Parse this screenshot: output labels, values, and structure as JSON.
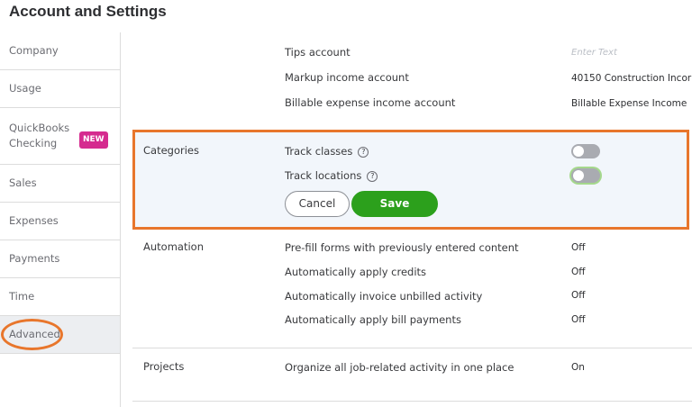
{
  "title": "Account and Settings",
  "sidebar": {
    "items": [
      {
        "label": "Company"
      },
      {
        "label": "Usage"
      },
      {
        "label": "QuickBooks Checking",
        "badge": "NEW"
      },
      {
        "label": "Sales"
      },
      {
        "label": "Expenses"
      },
      {
        "label": "Payments"
      },
      {
        "label": "Time"
      },
      {
        "label": "Advanced",
        "active": true
      }
    ]
  },
  "accounts": {
    "tips_label": "Tips account",
    "tips_placeholder": "Enter Text",
    "markup_label": "Markup income account",
    "markup_value": "40150 Construction Incor",
    "billable_label": "Billable expense income account",
    "billable_value": "Billable Expense Income"
  },
  "categories": {
    "label": "Categories",
    "track_classes": "Track classes",
    "track_locations": "Track locations",
    "help": "?",
    "track_classes_on": false,
    "track_locations_on": false,
    "cancel": "Cancel",
    "save": "Save"
  },
  "automation": {
    "label": "Automation",
    "rows": [
      {
        "label": "Pre-fill forms with previously entered content",
        "value": "Off"
      },
      {
        "label": "Automatically apply credits",
        "value": "Off"
      },
      {
        "label": "Automatically invoice unbilled activity",
        "value": "Off"
      },
      {
        "label": "Automatically apply bill payments",
        "value": "Off"
      }
    ]
  },
  "projects": {
    "label": "Projects",
    "row": "Organize all job-related activity in one place",
    "value": "On"
  },
  "colors": {
    "highlight": "#e8762c",
    "save": "#2ca01c",
    "badge": "#d52b8f"
  }
}
